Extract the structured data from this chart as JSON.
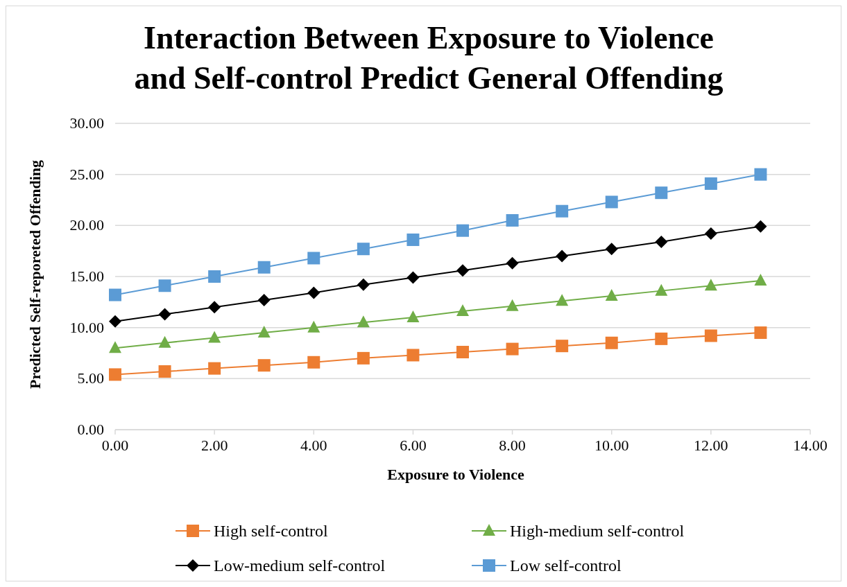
{
  "chart_data": {
    "type": "line",
    "title": "Interaction Between Exposure to Violence and Self-control Predict General Offending",
    "xlabel": "Exposure to Violence",
    "ylabel": "Predicted Self-reporeted Offending",
    "x": [
      0,
      1,
      2,
      3,
      4,
      5,
      6,
      7,
      8,
      9,
      10,
      11,
      12,
      13
    ],
    "series": [
      {
        "name": "High self-control",
        "color": "#ed7d31",
        "marker": "square",
        "values": [
          5.4,
          5.7,
          6.0,
          6.3,
          6.6,
          7.0,
          7.3,
          7.6,
          7.9,
          8.2,
          8.5,
          8.9,
          9.2,
          9.5
        ]
      },
      {
        "name": "High-medium self-control",
        "color": "#70ad47",
        "marker": "triangle",
        "values": [
          8.0,
          8.5,
          9.0,
          9.5,
          10.0,
          10.5,
          11.0,
          11.6,
          12.1,
          12.6,
          13.1,
          13.6,
          14.1,
          14.6
        ]
      },
      {
        "name": "Low-medium self-control",
        "color": "#000000",
        "marker": "diamond",
        "values": [
          10.6,
          11.3,
          12.0,
          12.7,
          13.4,
          14.2,
          14.9,
          15.6,
          16.3,
          17.0,
          17.7,
          18.4,
          19.2,
          19.9
        ]
      },
      {
        "name": "Low self-control",
        "color": "#5b9bd5",
        "marker": "square",
        "values": [
          13.2,
          14.1,
          15.0,
          15.9,
          16.8,
          17.7,
          18.6,
          19.5,
          20.5,
          21.4,
          22.3,
          23.2,
          24.1,
          25.0
        ]
      }
    ],
    "xlim": [
      0,
      14
    ],
    "xticks": [
      {
        "value": 0,
        "label": "0.00"
      },
      {
        "value": 2,
        "label": "2.00"
      },
      {
        "value": 4,
        "label": "4.00"
      },
      {
        "value": 6,
        "label": "6.00"
      },
      {
        "value": 8,
        "label": "8.00"
      },
      {
        "value": 10,
        "label": "10.00"
      },
      {
        "value": 12,
        "label": "12.00"
      },
      {
        "value": 14,
        "label": "14.00"
      }
    ],
    "ylim": [
      0,
      30
    ],
    "yticks": [
      {
        "value": 0,
        "label": "0.00"
      },
      {
        "value": 5,
        "label": "5.00"
      },
      {
        "value": 10,
        "label": "10.00"
      },
      {
        "value": 15,
        "label": "15.00"
      },
      {
        "value": 20,
        "label": "20.00"
      },
      {
        "value": 25,
        "label": "25.00"
      },
      {
        "value": 30,
        "label": "30.00"
      }
    ],
    "grid": "y",
    "legend": "bottom",
    "line_style": "solid"
  }
}
